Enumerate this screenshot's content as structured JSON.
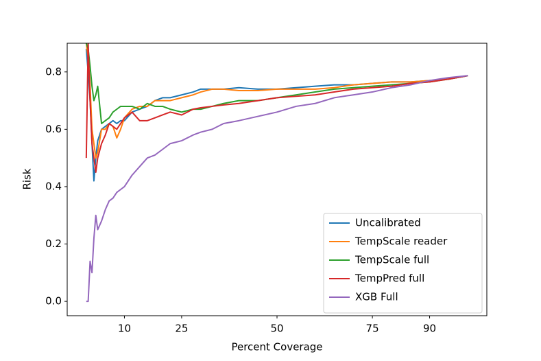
{
  "chart_data": {
    "type": "line",
    "x_label": "Percent Coverage",
    "y_label": "Risk",
    "xlim": [
      -5,
      105
    ],
    "ylim": [
      -0.05,
      0.9
    ],
    "xticks": [
      10,
      25,
      50,
      75,
      90
    ],
    "yticks": [
      {
        "value": 0,
        "label": "0.0"
      },
      0.2,
      0.4,
      0.6,
      0.8
    ],
    "legend": "lower right",
    "x": [
      0,
      0.5,
      1,
      1.5,
      2,
      2.5,
      3,
      4,
      5,
      6,
      7,
      8,
      9,
      10,
      12,
      14,
      16,
      18,
      20,
      22,
      25,
      28,
      30,
      33,
      36,
      40,
      45,
      50,
      55,
      60,
      65,
      70,
      75,
      80,
      85,
      90,
      95,
      100
    ],
    "series": [
      {
        "name": "Uncalibrated",
        "color": "#1f77b4",
        "values": [
          0.88,
          0.8,
          0.7,
          0.55,
          0.42,
          0.5,
          0.56,
          0.6,
          0.61,
          0.62,
          0.63,
          0.62,
          0.63,
          0.63,
          0.66,
          0.67,
          0.68,
          0.7,
          0.71,
          0.71,
          0.72,
          0.73,
          0.74,
          0.74,
          0.74,
          0.745,
          0.74,
          0.74,
          0.745,
          0.75,
          0.755,
          0.755,
          0.76,
          0.765,
          0.765,
          0.77,
          0.775,
          0.787
        ]
      },
      {
        "name": "TempScale reader",
        "color": "#ff7f0e",
        "values": [
          0.9,
          0.85,
          0.75,
          0.6,
          0.55,
          0.5,
          0.52,
          0.6,
          0.6,
          0.62,
          0.61,
          0.57,
          0.6,
          0.64,
          0.67,
          0.68,
          0.68,
          0.7,
          0.7,
          0.7,
          0.71,
          0.72,
          0.73,
          0.74,
          0.74,
          0.735,
          0.735,
          0.74,
          0.74,
          0.74,
          0.745,
          0.755,
          0.76,
          0.765,
          0.765,
          0.77,
          0.775,
          0.787
        ]
      },
      {
        "name": "TempScale full",
        "color": "#2ca02c",
        "values": [
          0.9,
          0.88,
          0.82,
          0.75,
          0.7,
          0.72,
          0.75,
          0.62,
          0.63,
          0.64,
          0.66,
          0.67,
          0.68,
          0.68,
          0.68,
          0.67,
          0.69,
          0.68,
          0.68,
          0.67,
          0.66,
          0.67,
          0.67,
          0.68,
          0.69,
          0.7,
          0.7,
          0.71,
          0.72,
          0.73,
          0.74,
          0.745,
          0.75,
          0.755,
          0.76,
          0.765,
          0.775,
          0.787
        ]
      },
      {
        "name": "TempPred full",
        "color": "#d62728",
        "values": [
          0.5,
          0.9,
          0.7,
          0.55,
          0.5,
          0.45,
          0.5,
          0.55,
          0.58,
          0.62,
          0.61,
          0.6,
          0.62,
          0.64,
          0.66,
          0.63,
          0.63,
          0.64,
          0.65,
          0.66,
          0.65,
          0.67,
          0.675,
          0.68,
          0.685,
          0.69,
          0.7,
          0.71,
          0.715,
          0.72,
          0.73,
          0.74,
          0.745,
          0.75,
          0.76,
          0.765,
          0.775,
          0.787
        ]
      },
      {
        "name": "XGB Full",
        "color": "#9467bd",
        "values": [
          0,
          0,
          0.14,
          0.1,
          0.22,
          0.3,
          0.25,
          0.28,
          0.32,
          0.35,
          0.36,
          0.38,
          0.39,
          0.4,
          0.44,
          0.47,
          0.5,
          0.51,
          0.53,
          0.55,
          0.56,
          0.58,
          0.59,
          0.6,
          0.62,
          0.63,
          0.645,
          0.66,
          0.68,
          0.69,
          0.71,
          0.72,
          0.73,
          0.745,
          0.755,
          0.77,
          0.78,
          0.787
        ]
      }
    ]
  }
}
